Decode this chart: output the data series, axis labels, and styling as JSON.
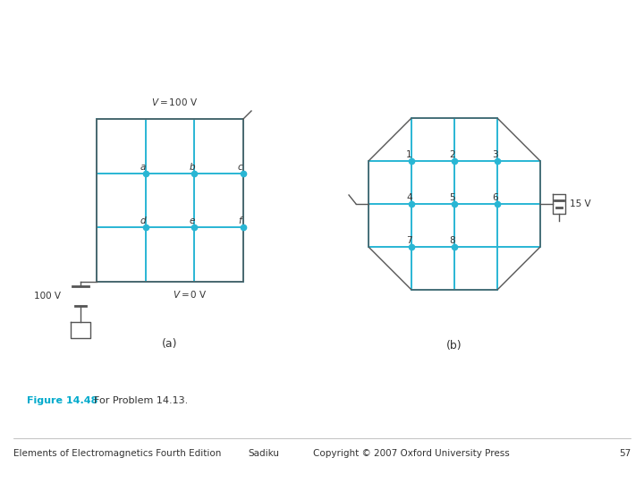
{
  "bg_color": "#ffffff",
  "grid_color": "#29b6d4",
  "outline_color": "#555555",
  "dot_color": "#29b6d4",
  "text_color": "#333333",
  "fig_label_color": "#00aacc",
  "bottom_left": "Elements of Electromagnetics Fourth Edition",
  "bottom_center1": "Sadiku",
  "bottom_center2": "Copyright © 2007 Oxford University Press",
  "bottom_right": "57"
}
